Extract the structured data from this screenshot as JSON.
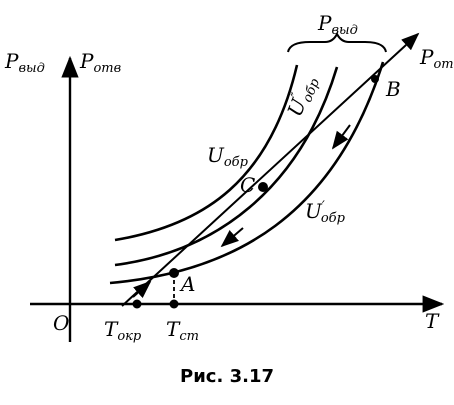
{
  "figure": {
    "caption": "Рис. 3.17",
    "labels": {
      "y_axis_a": {
        "main": "P",
        "sub": "выд"
      },
      "y_axis_b": {
        "main": "P",
        "sub": "отв"
      },
      "x_axis": "T",
      "origin": "O",
      "t_env": {
        "main": "T",
        "sub": "окр"
      },
      "t_st": {
        "main": "T",
        "sub": "ст"
      },
      "curve_low": {
        "main": "U",
        "sub": "обр",
        "sup": "′"
      },
      "curve_mid": {
        "main": "U",
        "sub": "обр",
        "sup": "″"
      },
      "curve_high": {
        "main": "U",
        "sub": "обр"
      },
      "brace": {
        "main": "P",
        "sub": "выд"
      },
      "line": {
        "main": "P",
        "sub": "от"
      },
      "point_a": "A",
      "point_b": "B",
      "point_c": "C"
    }
  }
}
